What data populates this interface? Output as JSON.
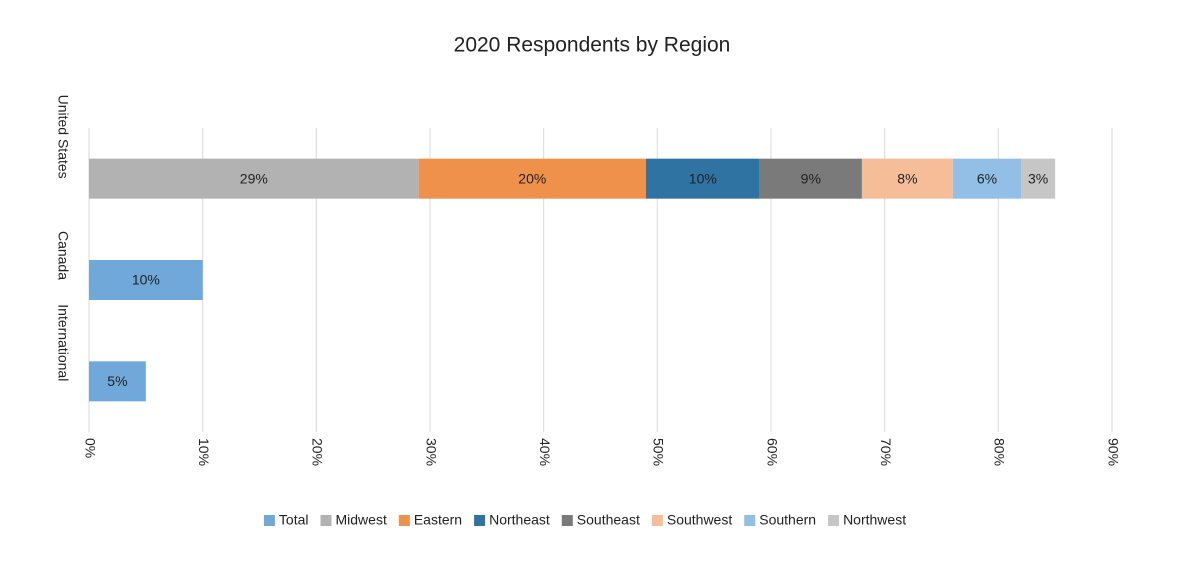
{
  "chart_data": {
    "type": "stacked-bar",
    "orientation": "horizontal",
    "title": "2020 Respondents by Region",
    "categories": [
      "United States",
      "Canada",
      "International"
    ],
    "series": [
      {
        "name": "Total",
        "color": "#6fa8d9",
        "values": [
          null,
          10,
          5
        ],
        "value_labels": [
          null,
          "10%",
          "5%"
        ]
      },
      {
        "name": "Midwest",
        "color": "#b2b2b2",
        "values": [
          29,
          null,
          null
        ],
        "value_labels": [
          "29%",
          null,
          null
        ]
      },
      {
        "name": "Eastern",
        "color": "#f0914b",
        "values": [
          20,
          null,
          null
        ],
        "value_labels": [
          "20%",
          null,
          null
        ]
      },
      {
        "name": "Northeast",
        "color": "#2f73a3",
        "values": [
          10,
          null,
          null
        ],
        "value_labels": [
          "10%",
          null,
          null
        ]
      },
      {
        "name": "Southeast",
        "color": "#7a7a7a",
        "values": [
          9,
          null,
          null
        ],
        "value_labels": [
          "9%",
          null,
          null
        ]
      },
      {
        "name": "Southwest",
        "color": "#f5bd98",
        "values": [
          8,
          null,
          null
        ],
        "value_labels": [
          "8%",
          null,
          null
        ]
      },
      {
        "name": "Southern",
        "color": "#92bfe6",
        "values": [
          6,
          null,
          null
        ],
        "value_labels": [
          "6%",
          null,
          null
        ]
      },
      {
        "name": "Northwest",
        "color": "#c6c6c6",
        "values": [
          3,
          null,
          null
        ],
        "value_labels": [
          "3%",
          null,
          null
        ]
      }
    ],
    "xlim": [
      0,
      90
    ],
    "xticks": [
      {
        "value": 0,
        "label": "0%"
      },
      {
        "value": 10,
        "label": "10%"
      },
      {
        "value": 20,
        "label": "20%"
      },
      {
        "value": 30,
        "label": "30%"
      },
      {
        "value": 40,
        "label": "40%"
      },
      {
        "value": 50,
        "label": "50%"
      },
      {
        "value": 60,
        "label": "60%"
      },
      {
        "value": 70,
        "label": "70%"
      },
      {
        "value": 80,
        "label": "80%"
      },
      {
        "value": 90,
        "label": "90%"
      }
    ],
    "grid": true,
    "legend": "bottom"
  }
}
